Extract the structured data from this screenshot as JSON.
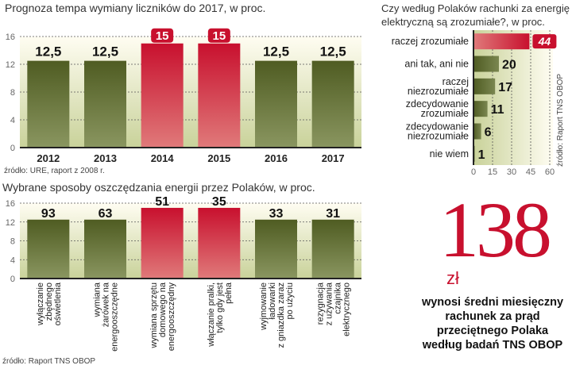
{
  "chart_data": [
    {
      "type": "bar",
      "title": "Prognoza tempa wymiany liczników do 2017, w proc.",
      "categories": [
        "2012",
        "2013",
        "2014",
        "2015",
        "2016",
        "2017"
      ],
      "values": [
        12.5,
        12.5,
        15,
        15,
        12.5,
        12.5
      ],
      "value_labels": [
        "12,5",
        "12,5",
        "15",
        "15",
        "12,5",
        "12,5"
      ],
      "highlight": [
        false,
        false,
        true,
        true,
        false,
        false
      ],
      "ylim": [
        0,
        16
      ],
      "yticks": [
        "0",
        "4",
        "8",
        "12",
        "16"
      ],
      "grid": true,
      "source": "źródło: URE, raport z 2008 r."
    },
    {
      "type": "bar",
      "title": "Wybrane sposoby oszczędzania energii przez Polaków, w proc.",
      "categories": [
        "wyłączanie zbędnego oświetlenia",
        "wymiana żarówek na energooszczędne",
        "wymiana sprzętu domowego na energooszczędny",
        "włączanie pralki, tylko gdy jest pełna",
        "wyjmowanie ładowarki z gniazdka zaraz po użyciu",
        "rezygnacja z używania czajnika elektrycznego"
      ],
      "category_lines": [
        [
          "wyłączanie",
          "zbędnego",
          "oświetlenia"
        ],
        [
          "wymiana",
          "żarówek na",
          "energooszczędne"
        ],
        [
          "wymiana sprzętu",
          "domowego na",
          "energooszczędny"
        ],
        [
          "włączanie pralki,",
          "tylko gdy jest",
          "pełna"
        ],
        [
          "wyjmowanie",
          "ładowarki",
          "z gniazdka zaraz",
          "po użyciu"
        ],
        [
          "rezygnacja",
          "z używania",
          "czajnika",
          "elektrycznego"
        ]
      ],
      "values": [
        93,
        63,
        51,
        35,
        33,
        31
      ],
      "bar_levels": [
        12.5,
        12.5,
        15,
        15,
        12.5,
        12.5
      ],
      "highlight": [
        false,
        false,
        true,
        true,
        false,
        false
      ],
      "ylim": [
        0,
        16
      ],
      "yticks": [
        "0",
        "4",
        "8",
        "12",
        "16"
      ],
      "grid": true,
      "source": "źródło: Raport TNS OBOP"
    },
    {
      "type": "bar",
      "orientation": "horizontal",
      "title_lines": [
        "Czy według Polaków rachunki za energię",
        "elektryczną są zrozumiałe?, w proc."
      ],
      "categories": [
        "raczej zrozumiałe",
        "ani tak, ani nie",
        "raczej niezrozumiałe",
        "zdecydowanie zrozumiałe",
        "zdecydowanie niezrozumiałe",
        "nie wiem"
      ],
      "category_lines": [
        [
          "raczej zrozumiałe"
        ],
        [
          "ani tak, ani nie"
        ],
        [
          "raczej",
          "niezrozumiałe"
        ],
        [
          "zdecydowanie",
          "zrozumiałe"
        ],
        [
          "zdecydowanie",
          "niezrozumiałe"
        ],
        [
          "nie wiem"
        ]
      ],
      "values": [
        44,
        20,
        17,
        11,
        6,
        1
      ],
      "highlight": [
        true,
        false,
        false,
        false,
        false,
        false
      ],
      "xlim": [
        0,
        60
      ],
      "xticks": [
        "0",
        "15",
        "30",
        "45",
        "60"
      ],
      "grid": true,
      "source": "źródło: Raport TNS OBOP"
    }
  ],
  "highlight_box": {
    "number": "138",
    "unit": "zł",
    "text_lines": [
      "wynosi średni miesięczny",
      "rachunek za prąd",
      "przeciętnego Polaka",
      "według badań TNS OBOP"
    ]
  },
  "colors": {
    "olive": "#5a6a2a",
    "red": "#d4213d",
    "accent": "#c8102e",
    "bg_light": "#fbf8e6",
    "bg_green": "#c9d29a"
  }
}
